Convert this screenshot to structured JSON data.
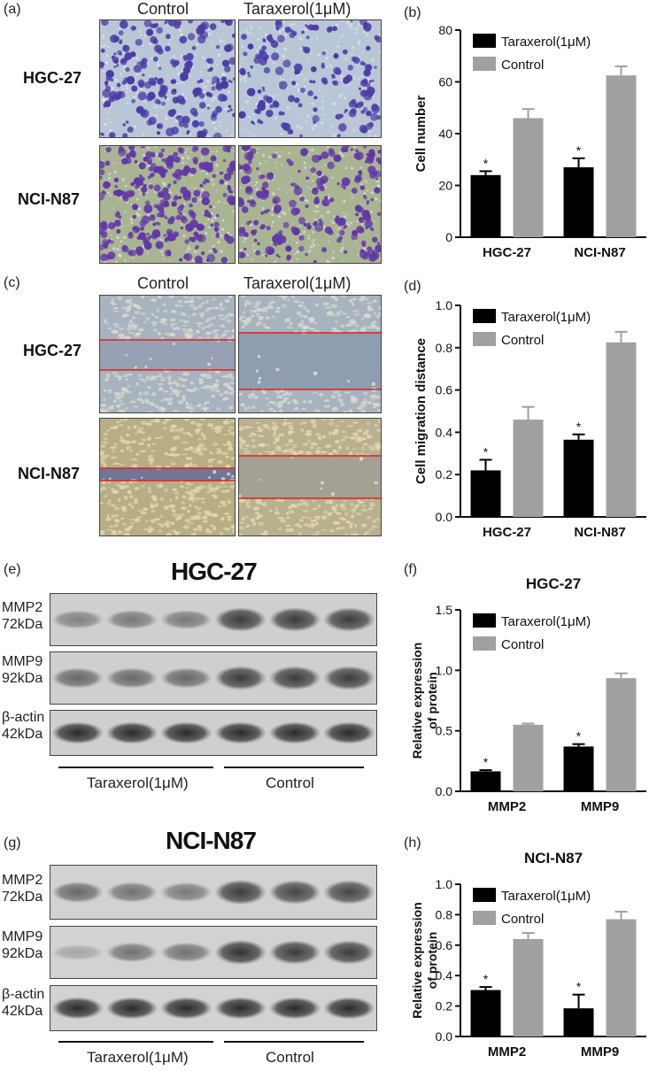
{
  "panel_labels": {
    "a": "(a)",
    "b": "(b)",
    "c": "(c)",
    "d": "(d)",
    "e": "(e)",
    "f": "(f)",
    "g": "(g)",
    "h": "(h)"
  },
  "micrograph_columns": {
    "control": "Control",
    "treatment": "Taraxerol(1μM)"
  },
  "cell_lines": {
    "hgc": "HGC-27",
    "nci": "NCI-N87"
  },
  "blot_labels": {
    "mmp2": "MMP2",
    "mmp2_kda": "72kDa",
    "mmp9": "MMP9",
    "mmp9_kda": "92kDa",
    "actin": "β-actin",
    "actin_kda": "42kDa"
  },
  "blot_titles": {
    "e": "HGC-27",
    "g": "NCI-N87"
  },
  "blot_groups": {
    "treatment": "Taraxerol(1μM)",
    "control": "Control"
  },
  "colors": {
    "treatment": "#000000",
    "control": "#a0a0a0",
    "stain": "#5b3fa8",
    "scratch_line": "#e02020"
  },
  "chart_data": [
    {
      "id": "b",
      "type": "bar",
      "title": "",
      "xlabel": "",
      "ylabel": "Cell number",
      "categories": [
        "HGC-27",
        "NCI-N87"
      ],
      "ylim": [
        0,
        80
      ],
      "yticks": [
        "0",
        "20",
        "40",
        "60",
        "80"
      ],
      "series": [
        {
          "name": "Taraxerol(1μM)",
          "values": [
            24,
            27
          ],
          "errors": [
            1.5,
            3.5
          ]
        },
        {
          "name": "Control",
          "values": [
            46,
            62.5
          ],
          "errors": [
            3.5,
            3.5
          ]
        }
      ],
      "significance": [
        "*",
        "*"
      ],
      "legend": "top-left"
    },
    {
      "id": "d",
      "type": "bar",
      "title": "",
      "xlabel": "",
      "ylabel": "Cell migration distance",
      "categories": [
        "HGC-27",
        "NCI-N87"
      ],
      "ylim": [
        0,
        1.0
      ],
      "yticks": [
        "0.0",
        "0.2",
        "0.4",
        "0.6",
        "0.8",
        "1.0"
      ],
      "series": [
        {
          "name": "Taraxerol(1μM)",
          "values": [
            0.22,
            0.365
          ],
          "errors": [
            0.05,
            0.025
          ]
        },
        {
          "name": "Control",
          "values": [
            0.46,
            0.825
          ],
          "errors": [
            0.06,
            0.05
          ]
        }
      ],
      "significance": [
        "*",
        "*"
      ],
      "legend": "top-left"
    },
    {
      "id": "f",
      "type": "bar",
      "title": "HGC-27",
      "xlabel": "",
      "ylabel": "Relative expression of protein",
      "categories": [
        "MMP2",
        "MMP9"
      ],
      "ylim": [
        0,
        1.5
      ],
      "yticks": [
        "0.0",
        "0.5",
        "1.0",
        "1.5"
      ],
      "series": [
        {
          "name": "Taraxerol(1μM)",
          "values": [
            0.165,
            0.37
          ],
          "errors": [
            0.01,
            0.02
          ]
        },
        {
          "name": "Control",
          "values": [
            0.55,
            0.935
          ],
          "errors": [
            0.01,
            0.04
          ]
        }
      ],
      "significance": [
        "*",
        "*"
      ],
      "legend": "top-left"
    },
    {
      "id": "h",
      "type": "bar",
      "title": "NCI-N87",
      "xlabel": "",
      "ylabel": "Relative expression of protein",
      "categories": [
        "MMP2",
        "MMP9"
      ],
      "ylim": [
        0,
        1.0
      ],
      "yticks": [
        "0.0",
        "0.2",
        "0.4",
        "0.6",
        "0.8",
        "1.0"
      ],
      "series": [
        {
          "name": "Taraxerol(1μM)",
          "values": [
            0.305,
            0.185
          ],
          "errors": [
            0.02,
            0.09
          ]
        },
        {
          "name": "Control",
          "values": [
            0.64,
            0.77
          ],
          "errors": [
            0.04,
            0.05
          ]
        }
      ],
      "significance": [
        "*",
        "*"
      ],
      "legend": "top-left"
    }
  ]
}
